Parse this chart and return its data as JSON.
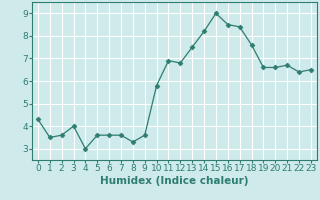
{
  "x": [
    0,
    1,
    2,
    3,
    4,
    5,
    6,
    7,
    8,
    9,
    10,
    11,
    12,
    13,
    14,
    15,
    16,
    17,
    18,
    19,
    20,
    21,
    22,
    23
  ],
  "y": [
    4.3,
    3.5,
    3.6,
    4.0,
    3.0,
    3.6,
    3.6,
    3.6,
    3.3,
    3.6,
    5.8,
    6.9,
    6.8,
    7.5,
    8.2,
    9.0,
    8.5,
    8.4,
    7.6,
    6.6,
    6.6,
    6.7,
    6.4,
    6.5
  ],
  "line_color": "#2e7d6e",
  "marker": "D",
  "marker_size": 2.5,
  "xlabel": "Humidex (Indice chaleur)",
  "xlim": [
    -0.5,
    23.5
  ],
  "ylim": [
    2.5,
    9.5
  ],
  "yticks": [
    3,
    4,
    5,
    6,
    7,
    8,
    9
  ],
  "xticks": [
    0,
    1,
    2,
    3,
    4,
    5,
    6,
    7,
    8,
    9,
    10,
    11,
    12,
    13,
    14,
    15,
    16,
    17,
    18,
    19,
    20,
    21,
    22,
    23
  ],
  "bg_color": "#ceeaea",
  "grid_color": "#ffffff",
  "tick_color": "#2e7d6e",
  "spine_color": "#2e7d6e",
  "tick_fontsize": 6.5,
  "xlabel_fontsize": 7.5
}
